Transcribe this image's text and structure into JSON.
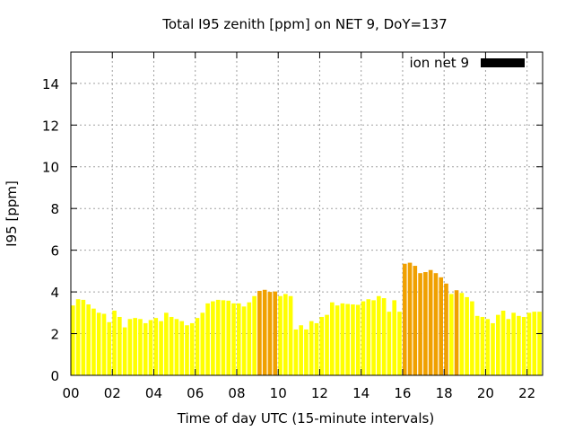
{
  "chart_data": {
    "type": "bar",
    "title": "Total I95 zenith [ppm] on NET 9, DoY=137",
    "xlabel": "Time of day UTC (15-minute intervals)",
    "ylabel": "I95 [ppm]",
    "xlim": [
      0,
      22.75
    ],
    "ylim": [
      0,
      15.5
    ],
    "x_ticks": [
      "00",
      "02",
      "04",
      "06",
      "08",
      "10",
      "12",
      "14",
      "16",
      "18",
      "20",
      "22"
    ],
    "y_ticks": [
      "0",
      "2",
      "4",
      "6",
      "8",
      "10",
      "12",
      "14"
    ],
    "grid": true,
    "legend": {
      "position": "top-right",
      "entries": [
        "ion net 9"
      ]
    },
    "bin_width_hours": 0.25,
    "colors": {
      "normal": "#ffff00",
      "elevated": "#f0a000",
      "legend_swatch": "#000000"
    },
    "series": [
      {
        "name": "ion net 9",
        "values": [
          3.35,
          3.65,
          3.62,
          3.4,
          3.2,
          3.0,
          2.95,
          2.55,
          3.1,
          2.8,
          2.3,
          2.7,
          2.75,
          2.7,
          2.5,
          2.65,
          2.75,
          2.6,
          3.0,
          2.8,
          2.7,
          2.6,
          2.4,
          2.5,
          2.75,
          3.0,
          3.45,
          3.55,
          3.62,
          3.6,
          3.58,
          3.45,
          3.45,
          3.3,
          3.5,
          3.8,
          4.05,
          4.1,
          4.0,
          4.02,
          3.8,
          3.9,
          3.8,
          2.2,
          2.4,
          2.2,
          2.6,
          2.5,
          2.8,
          2.9,
          3.5,
          3.35,
          3.45,
          3.42,
          3.4,
          3.38,
          3.55,
          3.65,
          3.6,
          3.8,
          3.7,
          3.05,
          3.6,
          3.05,
          5.35,
          5.4,
          5.25,
          4.9,
          4.95,
          5.05,
          4.9,
          4.7,
          4.4,
          3.9,
          4.08,
          3.95,
          3.75,
          3.55,
          2.85,
          2.8,
          2.7,
          2.5,
          2.9,
          3.1,
          2.7,
          3.0,
          2.85,
          2.8,
          3.0,
          3.05,
          3.05
        ],
        "elevated": [
          false,
          false,
          false,
          false,
          false,
          false,
          false,
          false,
          false,
          false,
          false,
          false,
          false,
          false,
          false,
          false,
          false,
          false,
          false,
          false,
          false,
          false,
          false,
          false,
          false,
          false,
          false,
          false,
          false,
          false,
          false,
          false,
          false,
          false,
          false,
          false,
          true,
          true,
          true,
          true,
          false,
          false,
          false,
          false,
          false,
          false,
          false,
          false,
          false,
          false,
          false,
          false,
          false,
          false,
          false,
          false,
          false,
          false,
          false,
          false,
          false,
          false,
          false,
          false,
          true,
          true,
          true,
          true,
          true,
          true,
          true,
          true,
          true,
          false,
          true,
          false,
          false,
          false,
          false,
          false,
          false,
          false,
          false,
          false,
          false,
          false,
          false,
          false,
          false,
          false,
          false
        ]
      }
    ]
  }
}
